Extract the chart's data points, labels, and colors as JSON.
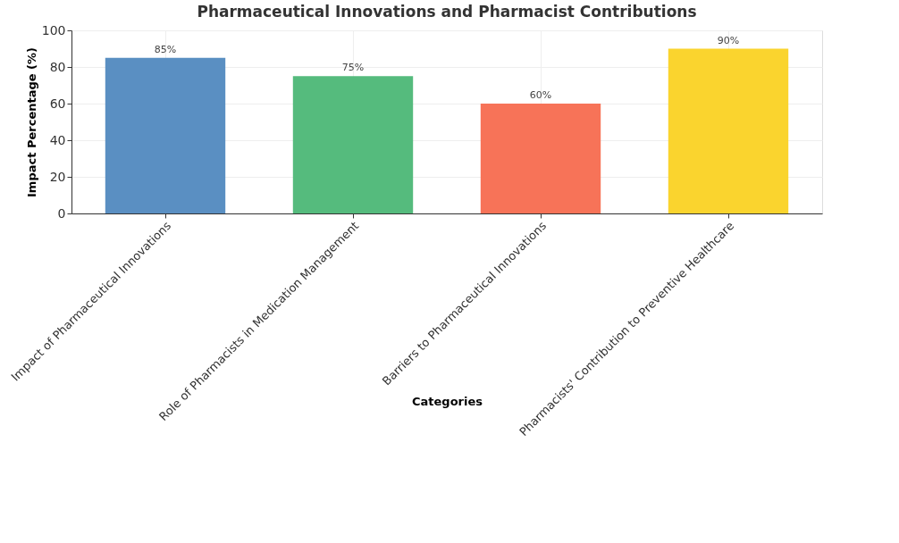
{
  "chart_data": {
    "type": "bar",
    "title": "Pharmaceutical Innovations and Pharmacist Contributions",
    "xlabel": "Categories",
    "ylabel": "Impact Percentage (%)",
    "categories": [
      "Impact of Pharmaceutical Innovations",
      "Role of Pharmacists in Medication Management",
      "Barriers to Pharmaceutical Innovations",
      "Pharmacists' Contribution to Preventive Healthcare"
    ],
    "values": [
      85,
      75,
      60,
      90
    ],
    "colors": [
      "#5a8fc2",
      "#55bb7d",
      "#f77358",
      "#fad42e"
    ],
    "value_labels": [
      "85%",
      "75%",
      "60%",
      "90%"
    ],
    "ylim": [
      0,
      100
    ],
    "yticks": [
      0,
      20,
      40,
      60,
      80,
      100
    ],
    "grid": true
  }
}
